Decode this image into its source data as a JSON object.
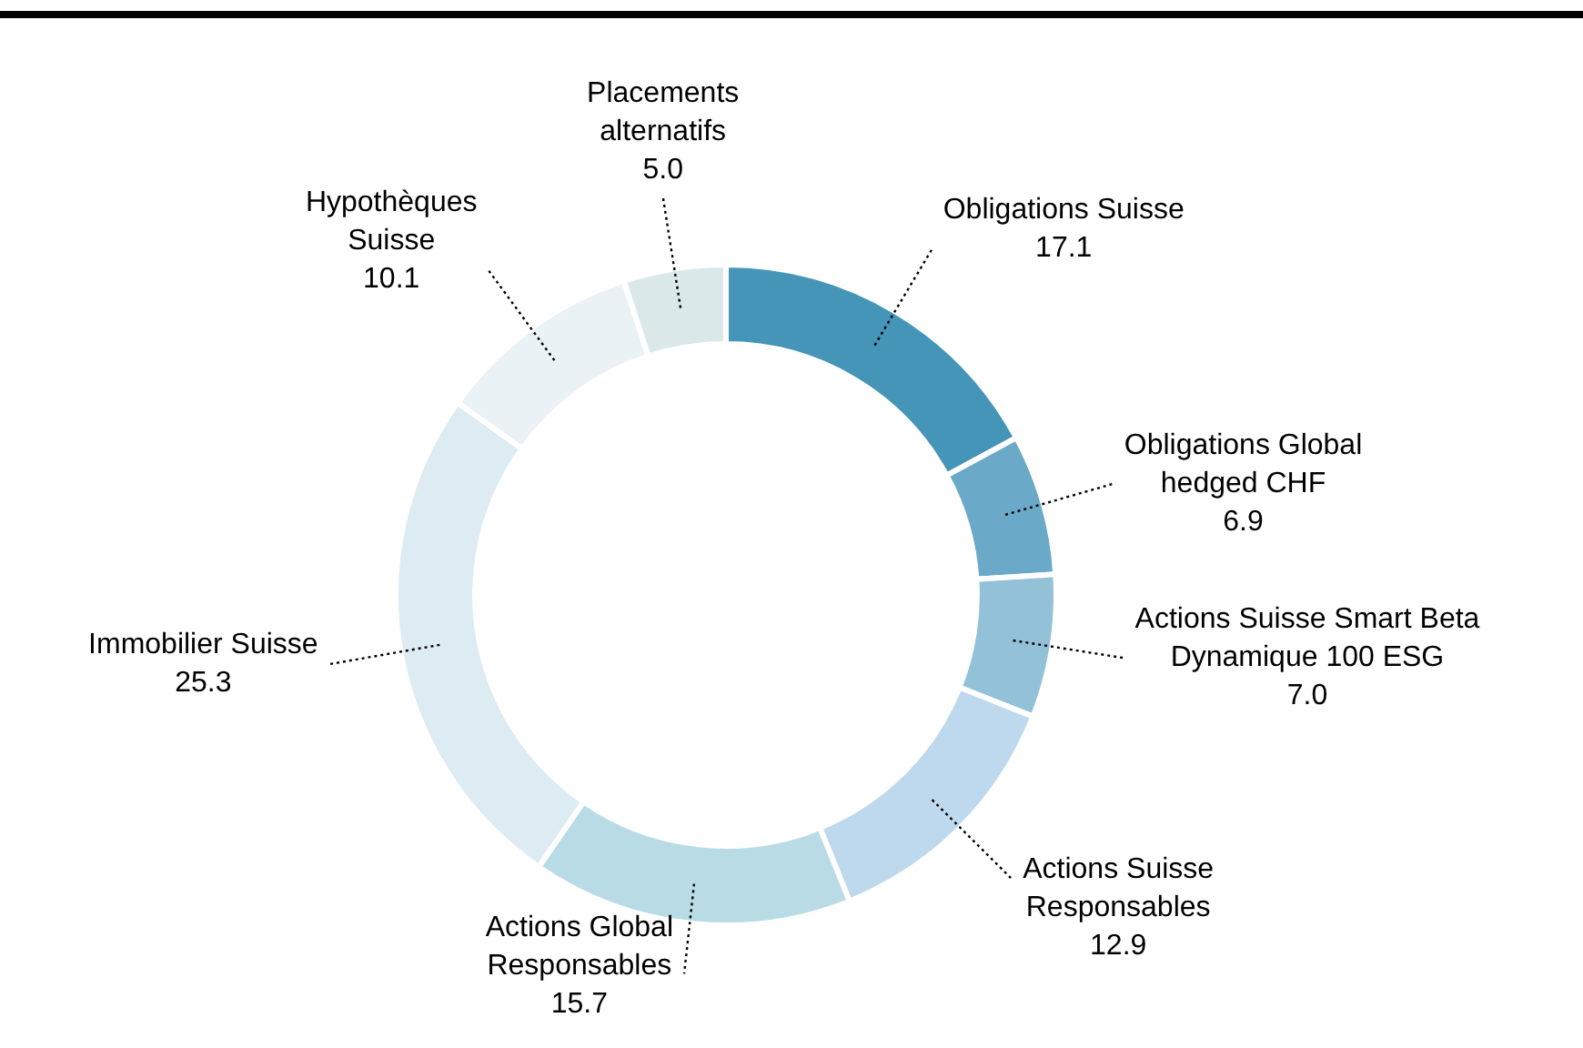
{
  "chart_data": {
    "type": "donut",
    "categories": [
      "Obligations Suisse",
      "Obligations Global\nhedged CHF",
      "Actions Suisse Smart Beta\nDynamique 100 ESG",
      "Actions Suisse\nResponsables",
      "Actions Global\nResponsables",
      "Immobilier Suisse",
      "Hypothèques\nSuisse",
      "Placements\nalternatifs"
    ],
    "values": [
      17.1,
      6.9,
      7.0,
      12.9,
      15.7,
      25.3,
      10.1,
      5.0
    ],
    "value_labels": [
      "17.1",
      "6.9",
      "7.0",
      "12.9",
      "15.7",
      "25.3",
      "10.1",
      "5.0"
    ],
    "colors": [
      "#4495b8",
      "#6aaac8",
      "#92c1d8",
      "#bed8ee",
      "#b9dbe5",
      "#ddebf2",
      "#eaf2f6",
      "#dbe8ea"
    ],
    "legend": false
  }
}
